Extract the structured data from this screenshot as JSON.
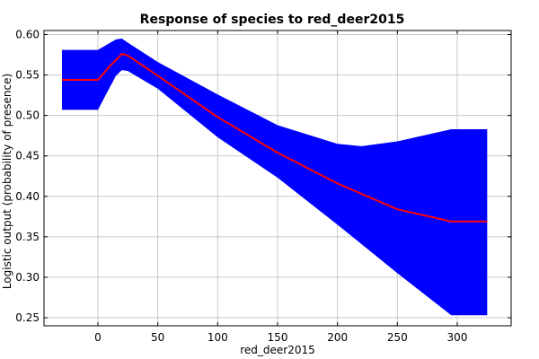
{
  "chart_data": {
    "type": "area",
    "title": "Response of species to red_deer2015",
    "xlabel": "red_deer2015",
    "ylabel": "Logistic output (probability of presence)",
    "xlim": [
      -45,
      345
    ],
    "ylim": [
      0.24,
      0.605
    ],
    "xticks": [
      0,
      50,
      100,
      150,
      200,
      250,
      300
    ],
    "yticks": [
      0.25,
      0.3,
      0.35,
      0.4,
      0.45,
      0.5,
      0.55,
      0.6
    ],
    "grid": true,
    "colors": {
      "band": "#0000ff",
      "line": "#ff0000",
      "grid": "#c8c8c8",
      "frame": "#000000"
    },
    "series": [
      {
        "role": "upper",
        "x": [
          -30,
          0,
          15,
          20,
          25,
          50,
          100,
          150,
          200,
          220,
          250,
          295,
          325
        ],
        "values": [
          0.581,
          0.581,
          0.594,
          0.595,
          0.59,
          0.566,
          0.526,
          0.488,
          0.465,
          0.462,
          0.468,
          0.483,
          0.483
        ]
      },
      {
        "role": "mean",
        "x": [
          -30,
          0,
          10,
          20,
          25,
          50,
          100,
          150,
          200,
          250,
          295,
          325
        ],
        "values": [
          0.544,
          0.544,
          0.561,
          0.576,
          0.574,
          0.549,
          0.498,
          0.454,
          0.416,
          0.384,
          0.369,
          0.369
        ]
      },
      {
        "role": "lower",
        "x": [
          -30,
          0,
          15,
          20,
          25,
          50,
          100,
          150,
          200,
          250,
          295,
          325
        ],
        "values": [
          0.507,
          0.507,
          0.549,
          0.556,
          0.555,
          0.533,
          0.473,
          0.423,
          0.365,
          0.305,
          0.253,
          0.253
        ]
      }
    ]
  }
}
